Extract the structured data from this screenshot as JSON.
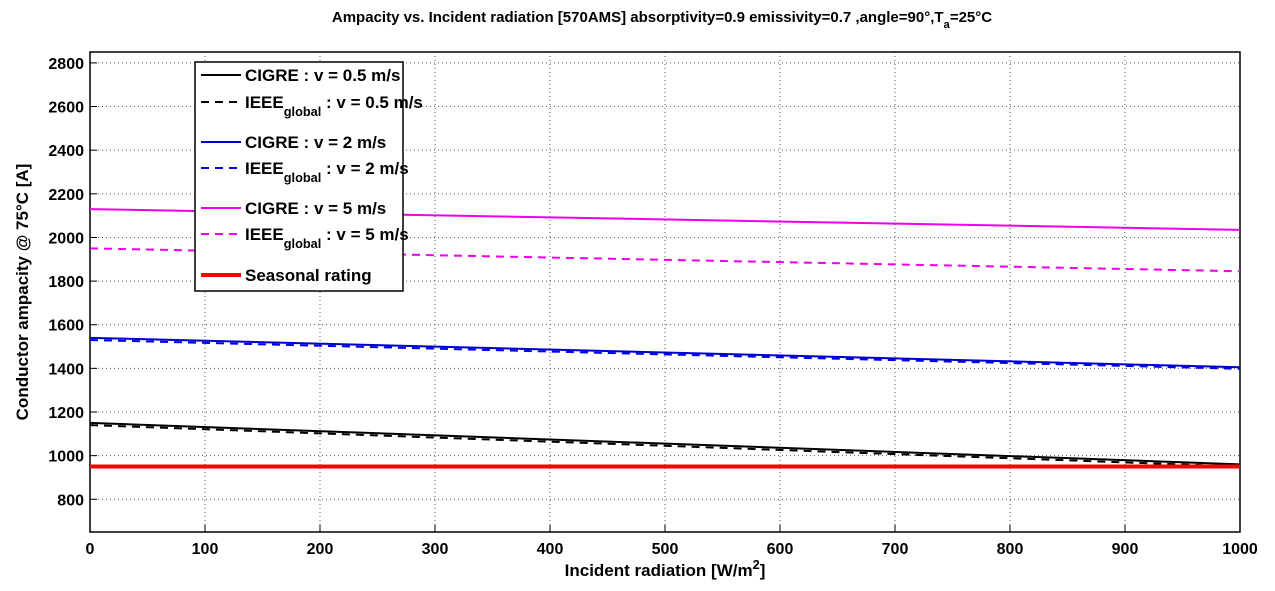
{
  "chart_data": {
    "type": "line",
    "title": {
      "text": "Ampacity vs. Incident radiation [570AMS] absorptivity=0.9 emissivity=0.7 ,angle=90°,T",
      "sub": "a",
      "after": "=25°C"
    },
    "x_label": {
      "text": "Incident radiation [W/m",
      "sup": "2",
      "after": "]"
    },
    "y_label": "Conductor ampacity @ 75°C [A]",
    "x": [
      0,
      1000
    ],
    "xlim": [
      0,
      1000
    ],
    "xticks": [
      0,
      100,
      200,
      300,
      400,
      500,
      600,
      700,
      800,
      900,
      1000
    ],
    "ylim": [
      650,
      2850
    ],
    "yticks": [
      800,
      1000,
      1200,
      1400,
      1600,
      1800,
      2000,
      2200,
      2400,
      2600,
      2800
    ],
    "grid": true,
    "legend": "upper-left",
    "series": [
      {
        "name": "CIGRE : v = 0.5 m/s",
        "color": "#000000",
        "linestyle": "solid",
        "linewidth": 2,
        "values": [
          1150,
          960
        ]
      },
      {
        "name": {
          "text": "IEEE",
          "sub": "global",
          "after": " : v = 0.5 m/s"
        },
        "color": "#000000",
        "linestyle": "dashed",
        "linewidth": 2,
        "values": [
          1140,
          950
        ]
      },
      {
        "name": "CIGRE : v = 2 m/s",
        "color": "#0000cc",
        "linestyle": "solid",
        "linewidth": 2,
        "values": [
          1540,
          1405
        ]
      },
      {
        "name": {
          "text": "IEEE",
          "sub": "global",
          "after": " : v = 2 m/s"
        },
        "color": "#0000ee",
        "linestyle": "dashed",
        "linewidth": 2,
        "values": [
          1530,
          1398
        ]
      },
      {
        "name": "CIGRE : v = 5 m/s",
        "color": "#ee00ee",
        "linestyle": "solid",
        "linewidth": 2,
        "values": [
          2130,
          2035
        ]
      },
      {
        "name": {
          "text": "IEEE",
          "sub": "global",
          "after": " : v = 5 m/s"
        },
        "color": "#ee00ee",
        "linestyle": "dashed",
        "linewidth": 2,
        "values": [
          1950,
          1845
        ]
      },
      {
        "name": "Seasonal rating",
        "color": "#ff0000",
        "linestyle": "solid",
        "linewidth": 4,
        "values": [
          950,
          950
        ]
      }
    ]
  }
}
